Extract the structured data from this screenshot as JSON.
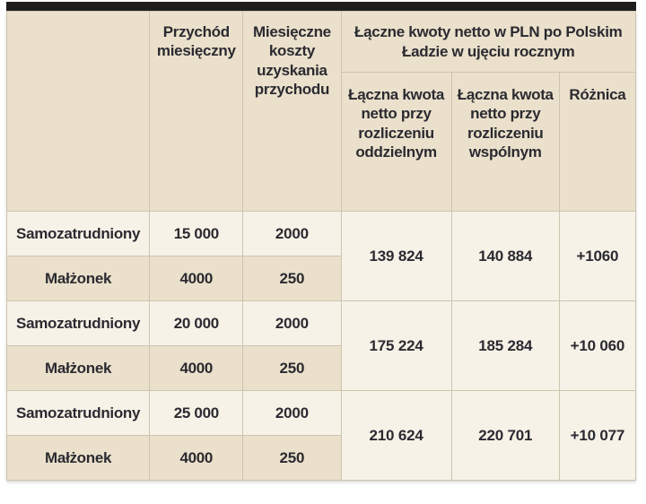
{
  "theme": {
    "page_background": "#ffffff",
    "top_bar_color": "#1e1d1b",
    "header_cell_background": "#eae0cb",
    "highlight_cell_background": "#f7f2e7",
    "border_color": "#cdc4b0",
    "text_color": "#2b2a31"
  },
  "table": {
    "headers": {
      "row_label": "",
      "income": "Przychód miesięczny",
      "costs": "Miesięczne koszty uzyskania przychodu",
      "group": "Łączne kwoty netto w PLN po Polskim Ładzie w ujęciu rocznym",
      "net_separate": "Łączna kwota netto przy rozliczeniu oddzielnym",
      "net_joint": "Łączna kwota netto przy rozliczeniu wspólnym",
      "difference": "Różnica"
    },
    "groups": [
      {
        "rows": [
          {
            "label": "Samozatrudniony",
            "income": "15 000",
            "costs": "2000"
          },
          {
            "label": "Małżonek",
            "income": "4000",
            "costs": "250"
          }
        ],
        "net_separate": "139 824",
        "net_joint": "140 884",
        "difference": "+1060"
      },
      {
        "rows": [
          {
            "label": "Samozatrudniony",
            "income": "20 000",
            "costs": "2000"
          },
          {
            "label": "Małżonek",
            "income": "4000",
            "costs": "250"
          }
        ],
        "net_separate": "175 224",
        "net_joint": "185 284",
        "difference": "+10 060"
      },
      {
        "rows": [
          {
            "label": "Samozatrudniony",
            "income": "25 000",
            "costs": "2000"
          },
          {
            "label": "Małżonek",
            "income": "4000",
            "costs": "250"
          }
        ],
        "net_separate": "210 624",
        "net_joint": "220 701",
        "difference": "+10 077"
      }
    ]
  }
}
